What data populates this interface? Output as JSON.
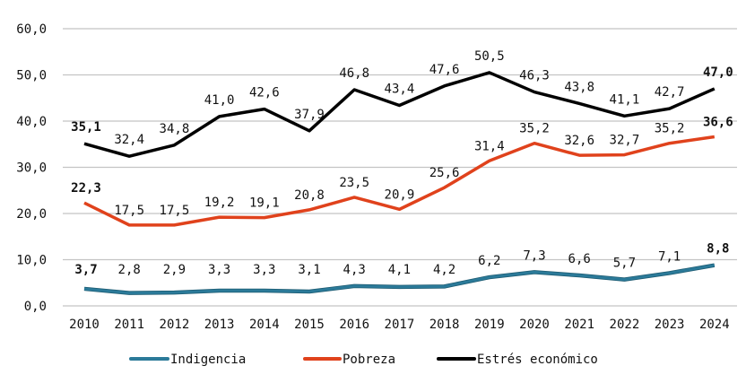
{
  "chart_data": {
    "type": "line",
    "title": "",
    "xlabel": "",
    "ylabel": "",
    "categories": [
      "2010",
      "2011",
      "2012",
      "2013",
      "2014",
      "2015",
      "2016",
      "2017",
      "2018",
      "2019",
      "2020",
      "2021",
      "2022",
      "2023",
      "2024"
    ],
    "ylim": [
      0,
      60
    ],
    "yticks": [
      "0,0",
      "10,0",
      "20,0",
      "30,0",
      "40,0",
      "50,0",
      "60,0"
    ],
    "grid": true,
    "legend_position": "bottom",
    "series": [
      {
        "name": "Indigencia",
        "color": "#2b7a99",
        "values": [
          3.7,
          2.8,
          2.9,
          3.3,
          3.3,
          3.1,
          4.3,
          4.1,
          4.2,
          6.2,
          7.3,
          6.6,
          5.7,
          7.1,
          8.8
        ],
        "labels": [
          "3,7",
          "2,8",
          "2,9",
          "3,3",
          "3,3",
          "3,1",
          "4,3",
          "4,1",
          "4,2",
          "6,2",
          "7,3",
          "6,6",
          "5,7",
          "7,1",
          "8,8"
        ]
      },
      {
        "name": "Pobreza",
        "color": "#e0421c",
        "values": [
          22.3,
          17.5,
          17.5,
          19.2,
          19.1,
          20.8,
          23.5,
          20.9,
          25.6,
          31.4,
          35.2,
          32.6,
          32.7,
          35.2,
          36.6
        ],
        "labels": [
          "22,3",
          "17,5",
          "17,5",
          "19,2",
          "19,1",
          "20,8",
          "23,5",
          "20,9",
          "25,6",
          "31,4",
          "35,2",
          "32,6",
          "32,7",
          "35,2",
          "36,6"
        ]
      },
      {
        "name": "Estrés económico",
        "color": "#000000",
        "values": [
          35.1,
          32.4,
          34.8,
          41.0,
          42.6,
          37.9,
          46.8,
          43.4,
          47.6,
          50.5,
          46.3,
          43.8,
          41.1,
          42.7,
          47.0
        ],
        "labels": [
          "35,1",
          "32,4",
          "34,8",
          "41,0",
          "42,6",
          "37,9",
          "46,8",
          "43,4",
          "47,6",
          "50,5",
          "46,3",
          "43,8",
          "41,1",
          "42,7",
          "47,0"
        ]
      }
    ]
  }
}
